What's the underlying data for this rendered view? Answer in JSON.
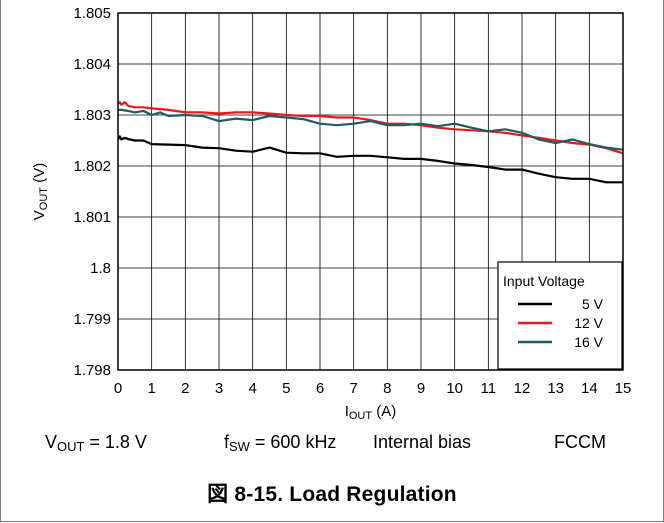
{
  "chart_data": {
    "type": "line",
    "title": "",
    "xlabel": {
      "main": "I",
      "sub": "OUT",
      "rest": " (A)"
    },
    "ylabel": {
      "main": "V",
      "sub": "OUT",
      "rest": " (V)"
    },
    "xlim": [
      0,
      15
    ],
    "ylim": [
      1.798,
      1.805
    ],
    "xticks": [
      "0",
      "1",
      "2",
      "3",
      "4",
      "5",
      "6",
      "7",
      "8",
      "9",
      "10",
      "11",
      "12",
      "13",
      "14",
      "15"
    ],
    "yticks": [
      "1.798",
      "1.799",
      "1.8",
      "1.801",
      "1.802",
      "1.803",
      "1.804",
      "1.805"
    ],
    "grid": true,
    "legend": {
      "title": "Input Voltage",
      "placement": "bottom-right"
    },
    "series": [
      {
        "name": "5 V",
        "color": "#000000",
        "x": [
          0,
          0.05,
          0.1,
          0.2,
          0.3,
          0.5,
          0.75,
          1,
          1.5,
          2,
          2.5,
          3,
          3.5,
          4,
          4.5,
          5,
          5.5,
          6,
          6.5,
          7,
          7.5,
          8,
          8.5,
          9,
          9.5,
          10,
          10.5,
          11,
          11.5,
          12,
          12.5,
          13,
          13.5,
          14,
          14.5,
          15
        ],
        "values": [
          1.80252,
          1.80258,
          1.80252,
          1.80255,
          1.80253,
          1.8025,
          1.8025,
          1.80243,
          1.80242,
          1.80241,
          1.80236,
          1.80235,
          1.8023,
          1.80228,
          1.80236,
          1.80226,
          1.80225,
          1.80225,
          1.80218,
          1.8022,
          1.8022,
          1.80217,
          1.80214,
          1.80214,
          1.8021,
          1.80205,
          1.80202,
          1.80198,
          1.80193,
          1.80193,
          1.80185,
          1.80178,
          1.80175,
          1.80175,
          1.80168,
          1.80168
        ]
      },
      {
        "name": "12 V",
        "color": "#e8191e",
        "x": [
          0,
          0.05,
          0.1,
          0.2,
          0.3,
          0.5,
          0.75,
          1,
          1.5,
          2,
          2.5,
          3,
          3.5,
          4,
          4.5,
          5,
          5.5,
          6,
          6.5,
          7,
          7.5,
          8,
          8.5,
          9,
          9.5,
          10,
          10.5,
          11,
          11.5,
          12,
          12.5,
          13,
          13.5,
          14,
          14.5,
          15
        ],
        "values": [
          1.80322,
          1.80325,
          1.8032,
          1.80325,
          1.80318,
          1.80315,
          1.80315,
          1.80313,
          1.8031,
          1.80305,
          1.80305,
          1.80303,
          1.80305,
          1.80305,
          1.80303,
          1.803,
          1.80298,
          1.80298,
          1.80295,
          1.80295,
          1.8029,
          1.80283,
          1.80283,
          1.8028,
          1.80275,
          1.80272,
          1.8027,
          1.80268,
          1.80265,
          1.8026,
          1.80255,
          1.8025,
          1.80245,
          1.80242,
          1.80235,
          1.80225
        ]
      },
      {
        "name": "16 V",
        "color": "#1f5a66",
        "x": [
          0,
          0.1,
          0.3,
          0.5,
          0.75,
          1,
          1.25,
          1.5,
          2,
          2.5,
          3,
          3.5,
          4,
          4.5,
          5,
          5.5,
          6,
          6.5,
          7,
          7.5,
          8,
          8.5,
          9,
          9.5,
          10,
          10.5,
          11,
          11.5,
          12,
          12.5,
          13,
          13.5,
          14,
          14.5,
          15
        ],
        "values": [
          1.8031,
          1.8031,
          1.80308,
          1.80305,
          1.80308,
          1.803,
          1.80305,
          1.80298,
          1.803,
          1.80298,
          1.80288,
          1.80293,
          1.8029,
          1.80298,
          1.80295,
          1.80292,
          1.80283,
          1.8028,
          1.80283,
          1.80288,
          1.8028,
          1.8028,
          1.80283,
          1.80278,
          1.80283,
          1.80275,
          1.80268,
          1.80272,
          1.80265,
          1.80252,
          1.80245,
          1.80252,
          1.80243,
          1.80236,
          1.80232
        ]
      }
    ]
  },
  "conditions": {
    "vout_main": "V",
    "vout_sub": "OUT",
    "vout_rest": " = 1.8 V",
    "fsw_main": "f",
    "fsw_sub": "SW",
    "fsw_rest": " = 600 kHz",
    "bias": "Internal bias",
    "mode": "FCCM"
  },
  "caption": "図 8-15. Load Regulation"
}
